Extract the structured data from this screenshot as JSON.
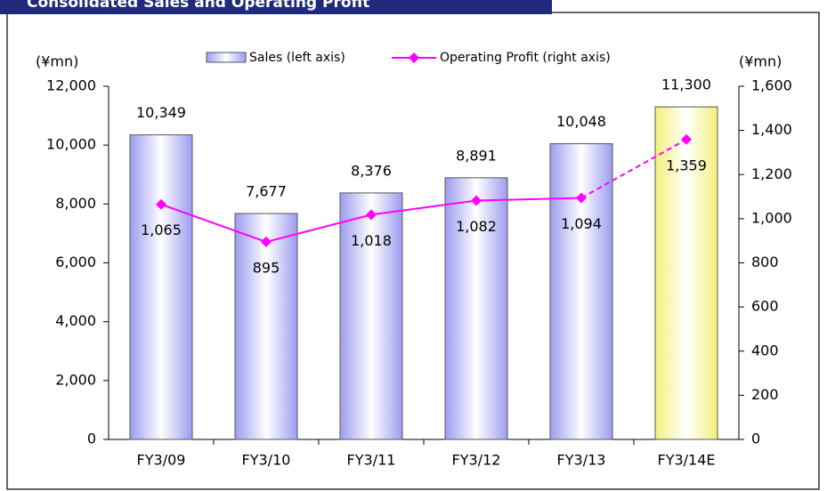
{
  "chart_data": {
    "type": "bar_line",
    "title": "Consolidated Sales and Operating Profit",
    "y_unit": "(¥mn)",
    "y2_unit": "(¥mn)",
    "categories": [
      "FY3/09",
      "FY3/10",
      "FY3/11",
      "FY3/12",
      "FY3/13",
      "FY3/14E"
    ],
    "series": [
      {
        "name": "Sales (left axis)",
        "type": "bar",
        "color": "#9c9cf0",
        "highlight_last_color": "#f4f07a",
        "values": [
          10349,
          7677,
          8376,
          8891,
          10048,
          11300
        ],
        "value_labels": [
          "10,349",
          "7,677",
          "8,376",
          "8,891",
          "10,048",
          "11,300"
        ]
      },
      {
        "name": "Operating Profit (right axis)",
        "type": "line",
        "axis": "y2",
        "color": "#ff00ff",
        "dash_last_segment": true,
        "values": [
          1065,
          895,
          1018,
          1082,
          1094,
          1359
        ],
        "value_labels": [
          "1,065",
          "895",
          "1,018",
          "1,082",
          "1,094",
          "1,359"
        ]
      }
    ],
    "ylim": [
      0,
      12000
    ],
    "yticks": [
      0,
      {
        "value": 2000,
        "label": "2,000"
      },
      {
        "value": 4000,
        "label": "4,000"
      },
      {
        "value": 6000,
        "label": "6,000"
      },
      {
        "value": 8000,
        "label": "8,000"
      },
      {
        "value": 10000,
        "label": "10,000"
      },
      {
        "value": 12000,
        "label": "12,000"
      }
    ],
    "y2lim": [
      0,
      1600
    ],
    "y2ticks": [
      0,
      200,
      400,
      600,
      800,
      {
        "value": 1000,
        "label": "1,000"
      },
      {
        "value": 1200,
        "label": "1,200"
      },
      {
        "value": 1400,
        "label": "1,400"
      },
      {
        "value": 1600,
        "label": "1,600"
      }
    ]
  }
}
